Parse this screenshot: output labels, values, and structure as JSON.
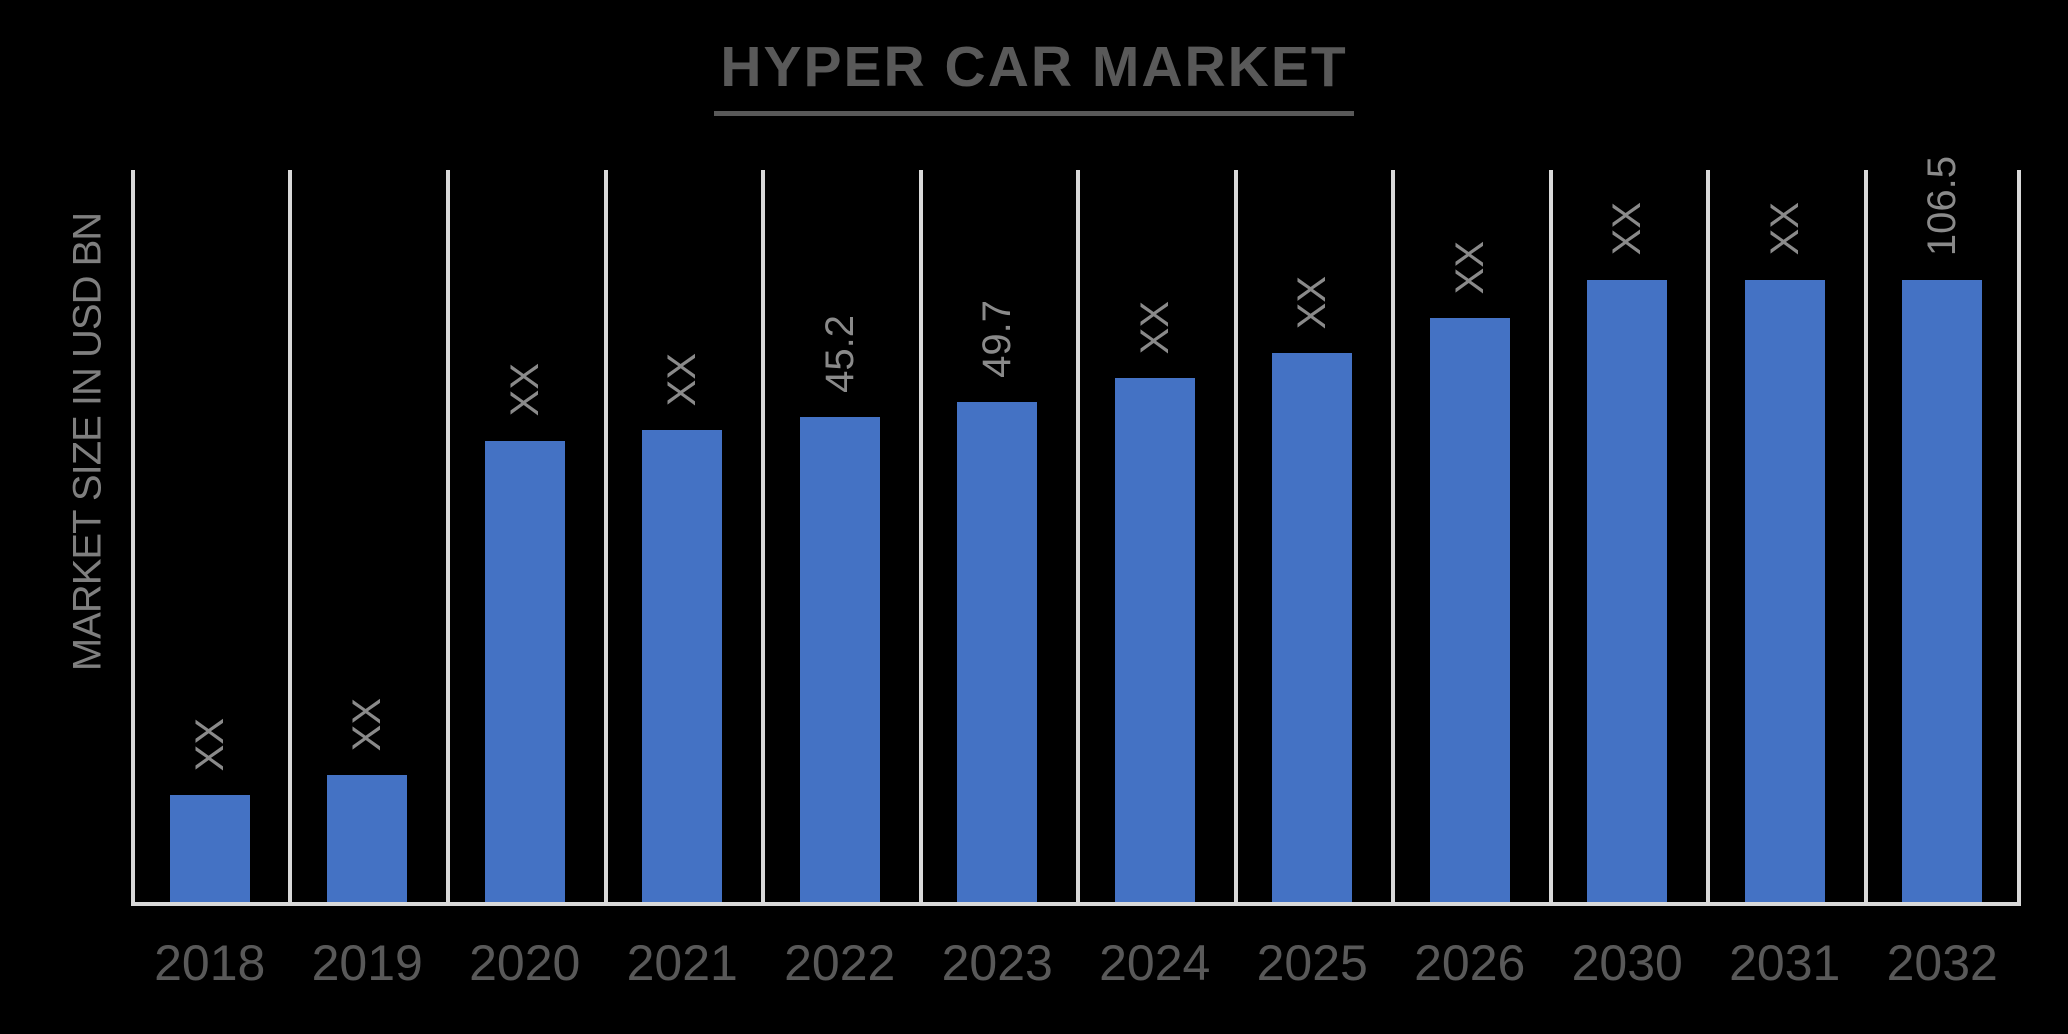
{
  "title": {
    "text": "HYPER CAR MARKET"
  },
  "y_axis": {
    "label": "MARKET SIZE IN USD BN"
  },
  "colors": {
    "background": "#000000",
    "bar": "#4472C4",
    "grid": "#d9d9d9",
    "title": "#595959",
    "tick": "#595959",
    "data_label": "#8a8a8a",
    "axis_label": "#7f7f7f"
  },
  "chart_data": {
    "type": "bar",
    "title": "HYPER CAR MARKET",
    "xlabel": "",
    "ylabel": "MARKET SIZE IN USD BN",
    "legend": false,
    "grid": "vertical column separators, black plot background",
    "categories": [
      "2018",
      "2019",
      "2020",
      "2021",
      "2022",
      "2023",
      "2024",
      "2025",
      "2026",
      "2030",
      "2031",
      "2032"
    ],
    "values": [
      null,
      null,
      null,
      null,
      45.2,
      49.7,
      null,
      null,
      null,
      null,
      null,
      106.5
    ],
    "labels": [
      "XX",
      "XX",
      "XX",
      "XX",
      "45.2",
      "49.7",
      "XX",
      "XX",
      "XX",
      "XX",
      "XX",
      "106.5"
    ],
    "bar_height_pct": [
      14.6,
      17.3,
      63.0,
      64.5,
      66.3,
      68.3,
      71.6,
      75.0,
      79.8,
      85.0,
      85.0,
      85.0
    ],
    "data_label_rotation_deg": 90
  }
}
